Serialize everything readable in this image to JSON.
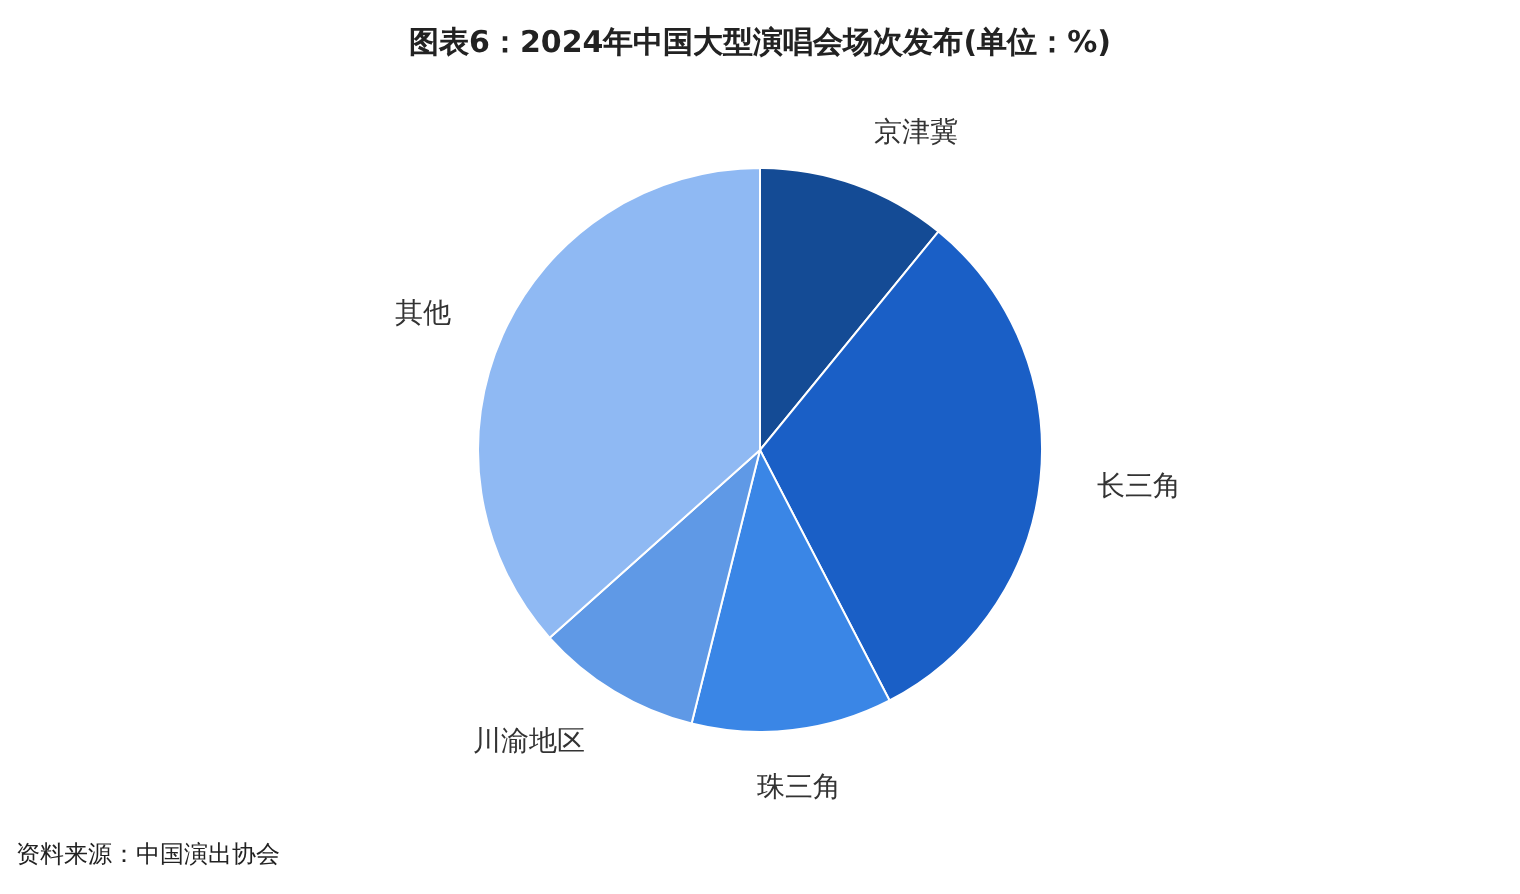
{
  "chart_data": {
    "type": "pie",
    "title": "图表6：2024年中国大型演唱会场次发布(单位：%)",
    "categories": [
      "京津冀",
      "长三角",
      "珠三角",
      "川渝地区",
      "其他"
    ],
    "values": [
      10.9,
      31.5,
      11.5,
      9.5,
      36.6
    ],
    "colors": [
      "#144b95",
      "#1a5fc6",
      "#3a86e6",
      "#5f99e6",
      "#8fb9f3"
    ],
    "annotations": [
      "资料来源：中国演出协会"
    ]
  }
}
